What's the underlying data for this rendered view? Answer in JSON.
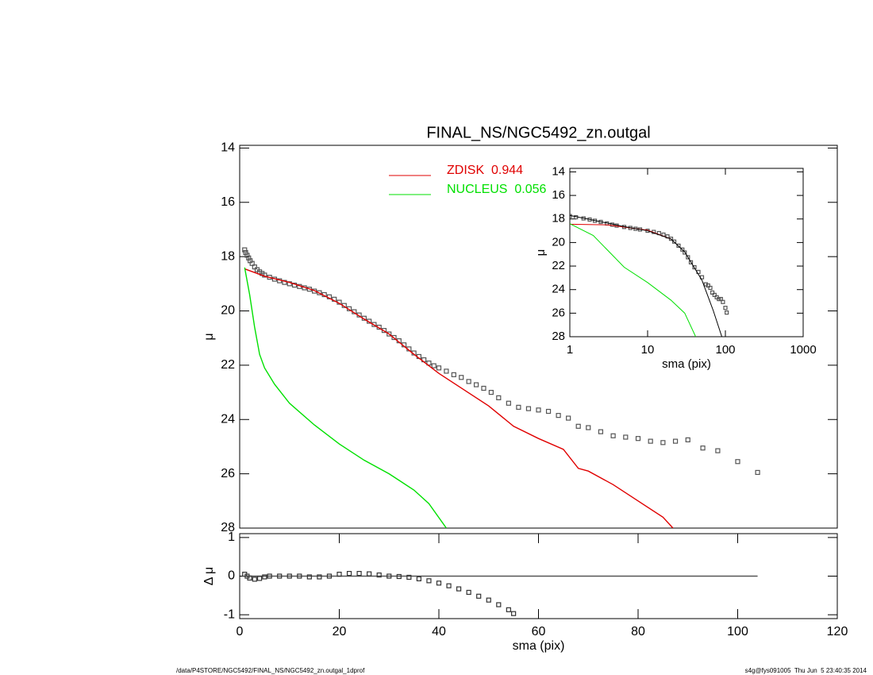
{
  "chart_data": [
    {
      "type": "line",
      "title": "FINAL_NS/NGC5492_zn.outgal",
      "ylabel": "μ",
      "xlim": [
        0,
        120
      ],
      "ylim": [
        28,
        13.9
      ],
      "yticks": [
        14,
        16,
        18,
        20,
        22,
        24,
        26,
        28
      ],
      "legend": true,
      "series": [
        {
          "marker": "square",
          "color": "#555555",
          "x": [
            1,
            1.2,
            1.5,
            1.8,
            2.1,
            2.5,
            3,
            3.5,
            4,
            4.5,
            5,
            6,
            7,
            8,
            9,
            10,
            11,
            12,
            13,
            14,
            15,
            16,
            17,
            18,
            19,
            20,
            21,
            22,
            23,
            24,
            25,
            26,
            27,
            28,
            29,
            30,
            31,
            32,
            33,
            34,
            35,
            36,
            37,
            38,
            39,
            40,
            41.5,
            43,
            44.5,
            46,
            47.5,
            49,
            50.5,
            52,
            54,
            56,
            58,
            60,
            62,
            64,
            66,
            68,
            70,
            72.5,
            75,
            77.5,
            80,
            82.5,
            85,
            87.5,
            90,
            93,
            96,
            100,
            104
          ],
          "values": [
            17.75,
            17.85,
            17.95,
            18.05,
            18.15,
            18.25,
            18.38,
            18.48,
            18.56,
            18.62,
            18.68,
            18.76,
            18.83,
            18.89,
            18.95,
            19.0,
            19.05,
            19.1,
            19.15,
            19.2,
            19.27,
            19.33,
            19.4,
            19.48,
            19.57,
            19.68,
            19.8,
            19.92,
            20.03,
            20.15,
            20.27,
            20.38,
            20.5,
            20.6,
            20.72,
            20.85,
            20.98,
            21.1,
            21.25,
            21.4,
            21.55,
            21.68,
            21.8,
            21.92,
            22.02,
            22.1,
            22.22,
            22.35,
            22.45,
            22.6,
            22.72,
            22.85,
            23.0,
            23.2,
            23.4,
            23.55,
            23.6,
            23.65,
            23.7,
            23.85,
            23.95,
            24.25,
            24.3,
            24.45,
            24.6,
            24.65,
            24.7,
            24.8,
            24.85,
            24.8,
            24.75,
            25.05,
            25.15,
            25.55,
            25.95
          ]
        },
        {
          "name": "ZDISK  0.944",
          "color": "#e00000",
          "x": [
            1,
            5,
            10,
            15,
            20,
            25,
            30,
            35,
            40,
            45,
            50,
            55,
            60,
            65,
            68,
            70,
            75,
            80,
            85,
            87
          ],
          "values": [
            18.45,
            18.72,
            18.95,
            19.25,
            19.72,
            20.3,
            20.85,
            21.6,
            22.3,
            22.9,
            23.5,
            24.25,
            24.7,
            25.1,
            25.8,
            25.9,
            26.4,
            27.0,
            27.6,
            28.0
          ]
        },
        {
          "name": "NUCLEUS  0.056",
          "color": "#00e000",
          "x": [
            1,
            2,
            3,
            4,
            5,
            7,
            10,
            15,
            20,
            25,
            30,
            35,
            38,
            41.5
          ],
          "values": [
            18.4,
            19.4,
            20.6,
            21.6,
            22.1,
            22.7,
            23.4,
            24.2,
            24.9,
            25.5,
            26.0,
            26.6,
            27.1,
            28.0
          ]
        }
      ]
    },
    {
      "type": "line",
      "xlabel": "sma (pix)",
      "ylabel": "Δ μ",
      "xlim": [
        0,
        120
      ],
      "xticks": [
        0,
        20,
        40,
        60,
        80,
        100,
        120
      ],
      "ylim": [
        -1.1,
        1.1
      ],
      "yticks": [
        -1,
        0,
        1
      ],
      "series": [
        {
          "color": "#555555",
          "x": [
            1,
            104
          ],
          "values": [
            0,
            0
          ]
        },
        {
          "marker": "square",
          "color": "#333333",
          "x": [
            1,
            1.5,
            2,
            3,
            4,
            5,
            6,
            8,
            10,
            12,
            14,
            16,
            18,
            20,
            22,
            24,
            26,
            28,
            30,
            32,
            34,
            36,
            38,
            40,
            42,
            44,
            46,
            48,
            50,
            52,
            54,
            55
          ],
          "values": [
            0.05,
            0.0,
            -0.05,
            -0.08,
            -0.06,
            -0.02,
            0.0,
            0.0,
            0.0,
            0.0,
            -0.02,
            -0.02,
            0.0,
            0.05,
            0.07,
            0.07,
            0.06,
            0.03,
            0.0,
            -0.01,
            -0.03,
            -0.07,
            -0.12,
            -0.18,
            -0.25,
            -0.33,
            -0.42,
            -0.52,
            -0.62,
            -0.74,
            -0.87,
            -0.97
          ]
        }
      ]
    },
    {
      "type": "line",
      "xlabel": "sma (pix)",
      "ylabel": "μ",
      "xlog": true,
      "xlim": [
        1,
        1000
      ],
      "xticks": [
        1,
        10,
        100,
        1000
      ],
      "ylim": [
        28,
        13.7
      ],
      "yticks": [
        14,
        16,
        18,
        20,
        22,
        24,
        26,
        28
      ],
      "series": [
        {
          "marker": "square",
          "color": "#555555",
          "x": [
            1,
            1.2,
            1.5,
            1.8,
            2.1,
            2.5,
            3,
            3.5,
            4,
            5,
            6,
            7,
            8,
            10,
            12,
            14,
            16,
            18,
            20,
            22,
            25,
            28,
            30,
            33,
            36,
            40,
            45,
            50,
            56,
            60,
            64,
            68,
            72.5,
            77.5,
            82.5,
            87.5,
            93,
            100,
            104
          ],
          "values": [
            17.75,
            17.85,
            17.95,
            18.05,
            18.15,
            18.25,
            18.38,
            18.48,
            18.56,
            18.68,
            18.76,
            18.83,
            18.89,
            19.0,
            19.1,
            19.2,
            19.33,
            19.48,
            19.68,
            19.92,
            20.27,
            20.6,
            20.85,
            21.25,
            21.68,
            22.1,
            22.5,
            22.95,
            23.55,
            23.65,
            23.85,
            24.25,
            24.45,
            24.65,
            24.8,
            24.8,
            25.05,
            25.55,
            25.95
          ]
        },
        {
          "color": "#e00000",
          "x": [
            1,
            3,
            10,
            20
          ],
          "values": [
            18.45,
            18.5,
            18.95,
            19.7
          ]
        },
        {
          "color": "#000000",
          "x": [
            1,
            2,
            5,
            10,
            20,
            30,
            50,
            70,
            90
          ],
          "values": [
            17.7,
            18.1,
            18.65,
            19.0,
            19.7,
            20.8,
            23.2,
            25.8,
            28.0
          ]
        },
        {
          "color": "#00e000",
          "x": [
            1,
            2,
            5,
            10,
            20,
            30,
            41.5
          ],
          "values": [
            18.4,
            19.4,
            22.1,
            23.4,
            24.9,
            26.0,
            28.0
          ]
        }
      ]
    }
  ],
  "footer": {
    "left": "/data/P4STORE/NGC5492/FINAL_NS/NGC5492_zn.outgal_1dprof",
    "right": "s4g@fys091005  Thu Jun  5 23:40:35 2014"
  }
}
